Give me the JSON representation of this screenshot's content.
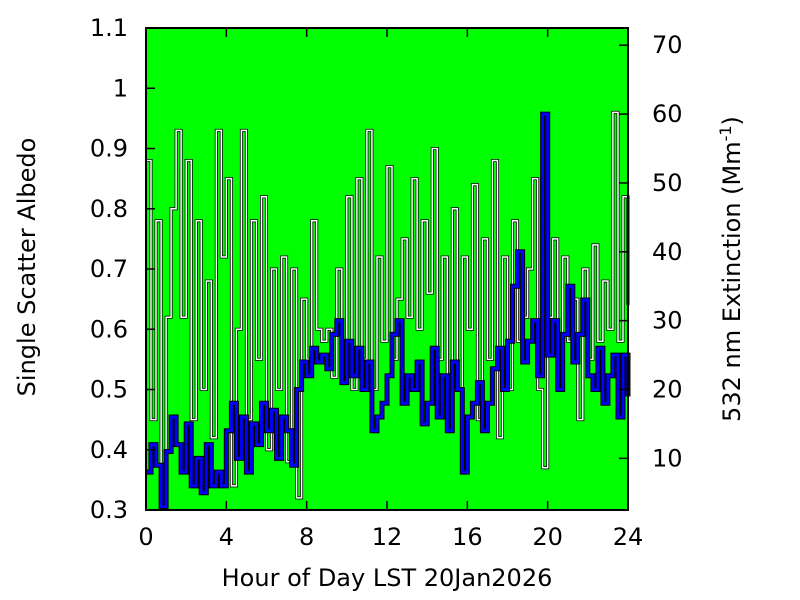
{
  "chart_data": {
    "type": "line",
    "title": "",
    "xlabel": "Hour of Day LST 20Jan2026",
    "ylabel": "Single Scatter Albedo",
    "y2label": {
      "prefix": "532 nm Extinction (Mm",
      "superscript": "-1",
      "suffix": ")"
    },
    "xlim": [
      0,
      24
    ],
    "ylim": [
      0.3,
      1.1
    ],
    "y2lim": [
      2.5,
      72.5
    ],
    "xticks": [
      0,
      4,
      8,
      12,
      16,
      20,
      24
    ],
    "yticks": [
      0.3,
      0.4,
      0.5,
      0.6,
      0.7,
      0.8,
      0.9,
      1,
      1.1
    ],
    "y2ticks": [
      10,
      20,
      30,
      40,
      50,
      60,
      70
    ],
    "grid": false,
    "legend": "none",
    "colors": {
      "plot_background": "#00ff00",
      "albedo": "#ffffff",
      "extinction": "#0000ff",
      "y2label": "#0000ff"
    },
    "series": [
      {
        "axis": "left",
        "x": [
          0,
          0.25,
          0.5,
          0.75,
          1,
          1.25,
          1.5,
          1.75,
          2,
          2.25,
          2.5,
          2.75,
          3,
          3.25,
          3.5,
          3.75,
          4,
          4.25,
          4.5,
          4.75,
          5,
          5.25,
          5.5,
          5.75,
          6,
          6.25,
          6.5,
          6.75,
          7,
          7.25,
          7.5,
          7.75,
          8,
          8.25,
          8.5,
          8.75,
          9,
          9.25,
          9.5,
          9.75,
          10,
          10.25,
          10.5,
          10.75,
          11,
          11.25,
          11.5,
          11.75,
          12,
          12.25,
          12.5,
          12.75,
          13,
          13.25,
          13.5,
          13.75,
          14,
          14.25,
          14.5,
          14.75,
          15,
          15.25,
          15.5,
          15.75,
          16,
          16.25,
          16.5,
          16.75,
          17,
          17.25,
          17.5,
          17.75,
          18,
          18.25,
          18.5,
          18.75,
          19,
          19.25,
          19.5,
          19.75,
          20,
          20.25,
          20.5,
          20.75,
          21,
          21.25,
          21.5,
          21.75,
          22,
          22.25,
          22.5,
          22.75,
          23,
          23.25,
          23.5,
          23.75,
          24
        ],
        "values": [
          0.88,
          0.45,
          0.78,
          0.33,
          0.62,
          0.8,
          0.93,
          0.62,
          0.88,
          0.45,
          0.78,
          0.5,
          0.68,
          0.42,
          0.93,
          0.72,
          0.85,
          0.34,
          0.6,
          0.93,
          0.45,
          0.78,
          0.55,
          0.82,
          0.4,
          0.7,
          0.5,
          0.72,
          0.38,
          0.7,
          0.32,
          0.65,
          0.55,
          0.78,
          0.6,
          0.58,
          0.6,
          0.52,
          0.7,
          0.56,
          0.82,
          0.5,
          0.85,
          0.55,
          0.93,
          0.5,
          0.72,
          0.58,
          0.87,
          0.55,
          0.65,
          0.75,
          0.62,
          0.85,
          0.6,
          0.78,
          0.66,
          0.9,
          0.55,
          0.72,
          0.45,
          0.8,
          0.5,
          0.72,
          0.6,
          0.84,
          0.45,
          0.75,
          0.55,
          0.88,
          0.42,
          0.72,
          0.5,
          0.78,
          0.58,
          0.62,
          0.7,
          0.85,
          0.5,
          0.37,
          0.62,
          0.75,
          0.5,
          0.72,
          0.58,
          0.65,
          0.45,
          0.7,
          0.55,
          0.74,
          0.58,
          0.68,
          0.6,
          0.96,
          0.58,
          0.82,
          0.64
        ]
      },
      {
        "axis": "right",
        "x": [
          0,
          0.25,
          0.5,
          0.75,
          1,
          1.25,
          1.5,
          1.75,
          2,
          2.25,
          2.5,
          2.75,
          3,
          3.25,
          3.5,
          3.75,
          4,
          4.25,
          4.5,
          4.75,
          5,
          5.25,
          5.5,
          5.75,
          6,
          6.25,
          6.5,
          6.75,
          7,
          7.25,
          7.5,
          7.75,
          8,
          8.25,
          8.5,
          8.75,
          9,
          9.25,
          9.5,
          9.75,
          10,
          10.25,
          10.5,
          10.75,
          11,
          11.25,
          11.5,
          11.75,
          12,
          12.25,
          12.5,
          12.75,
          13,
          13.25,
          13.5,
          13.75,
          14,
          14.25,
          14.5,
          14.75,
          15,
          15.25,
          15.5,
          15.75,
          16,
          16.25,
          16.5,
          16.75,
          17,
          17.25,
          17.5,
          17.75,
          18,
          18.25,
          18.5,
          18.75,
          19,
          19.25,
          19.5,
          19.75,
          20,
          20.25,
          20.5,
          20.75,
          21,
          21.25,
          21.5,
          21.75,
          22,
          22.25,
          22.5,
          22.75,
          23,
          23.25,
          23.5,
          23.75,
          24
        ],
        "values": [
          8,
          12,
          9,
          3,
          11,
          16,
          12,
          8,
          15,
          6,
          10,
          5,
          12,
          6,
          8,
          6,
          14,
          18,
          10,
          16,
          8,
          15,
          12,
          18,
          14,
          17,
          10,
          16,
          14,
          9,
          20,
          24,
          22,
          26,
          24,
          25,
          23,
          28,
          30,
          21,
          27,
          22,
          26,
          20,
          24,
          14,
          16,
          18,
          22,
          28,
          30,
          18,
          22,
          20,
          24,
          15,
          18,
          26,
          16,
          22,
          14,
          24,
          20,
          8,
          16,
          18,
          21,
          14,
          18,
          23,
          26,
          20,
          27,
          35,
          40,
          24,
          27,
          30,
          22,
          60,
          25,
          30,
          20,
          28,
          35,
          24,
          28,
          33,
          22,
          20,
          26,
          18,
          22,
          25,
          16,
          25,
          19
        ]
      }
    ]
  }
}
